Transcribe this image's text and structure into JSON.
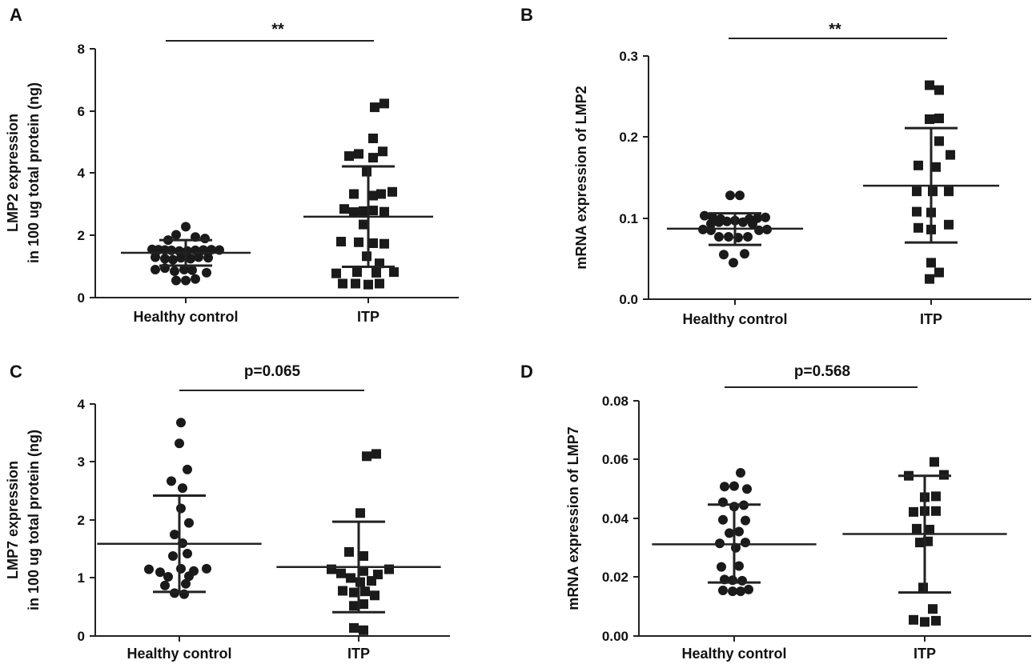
{
  "chart_data": [
    {
      "panel": "A",
      "type": "scatter",
      "ylabel": [
        "LMP2 expression",
        "in 100 ug total protein (ng)"
      ],
      "ylim": [
        0,
        8
      ],
      "yticks": [
        "0",
        "2",
        "4",
        "6",
        "8"
      ],
      "categories": [
        "Healthy control",
        "ITP"
      ],
      "significance": "**",
      "series": [
        {
          "name": "Healthy control",
          "marker": "circle",
          "mean": 1.44,
          "sd_low": 1.03,
          "sd_high": 1.85,
          "points": [
            {
              "x": -0.42,
              "y": 1.55
            },
            {
              "x": -0.34,
              "y": 1.54
            },
            {
              "x": -0.26,
              "y": 1.53
            },
            {
              "x": -0.18,
              "y": 1.52
            },
            {
              "x": -0.08,
              "y": 1.5
            },
            {
              "x": 0.02,
              "y": 1.5
            },
            {
              "x": 0.12,
              "y": 1.52
            },
            {
              "x": 0.22,
              "y": 1.53
            },
            {
              "x": 0.32,
              "y": 1.54
            },
            {
              "x": 0.42,
              "y": 1.53
            },
            {
              "x": -0.22,
              "y": 1.85
            },
            {
              "x": -0.12,
              "y": 2.02
            },
            {
              "x": 0.0,
              "y": 2.28
            },
            {
              "x": 0.12,
              "y": 1.95
            },
            {
              "x": 0.24,
              "y": 1.9
            },
            {
              "x": -0.38,
              "y": 1.3
            },
            {
              "x": -0.26,
              "y": 1.25
            },
            {
              "x": -0.16,
              "y": 1.22
            },
            {
              "x": -0.06,
              "y": 1.28
            },
            {
              "x": 0.06,
              "y": 1.25
            },
            {
              "x": 0.16,
              "y": 1.3
            },
            {
              "x": 0.28,
              "y": 1.28
            },
            {
              "x": -0.38,
              "y": 0.9
            },
            {
              "x": -0.26,
              "y": 0.95
            },
            {
              "x": -0.14,
              "y": 0.85
            },
            {
              "x": -0.02,
              "y": 0.9
            },
            {
              "x": 0.08,
              "y": 0.88
            },
            {
              "x": 0.26,
              "y": 0.8
            },
            {
              "x": -0.12,
              "y": 0.55
            },
            {
              "x": 0.0,
              "y": 0.55
            },
            {
              "x": 0.12,
              "y": 0.6
            }
          ]
        },
        {
          "name": "ITP",
          "marker": "square",
          "mean": 2.6,
          "sd_low": 0.99,
          "sd_high": 4.22,
          "points": [
            {
              "x": 0.08,
              "y": 6.12
            },
            {
              "x": 0.2,
              "y": 6.24
            },
            {
              "x": 0.06,
              "y": 5.12
            },
            {
              "x": -0.24,
              "y": 4.55
            },
            {
              "x": -0.12,
              "y": 4.62
            },
            {
              "x": 0.06,
              "y": 4.5
            },
            {
              "x": 0.18,
              "y": 4.7
            },
            {
              "x": -0.02,
              "y": 4.05
            },
            {
              "x": -0.18,
              "y": 3.33
            },
            {
              "x": 0.06,
              "y": 3.28
            },
            {
              "x": 0.16,
              "y": 3.33
            },
            {
              "x": 0.3,
              "y": 3.4
            },
            {
              "x": -0.3,
              "y": 2.85
            },
            {
              "x": -0.18,
              "y": 2.75
            },
            {
              "x": -0.06,
              "y": 2.78
            },
            {
              "x": 0.06,
              "y": 2.8
            },
            {
              "x": 0.2,
              "y": 2.76
            },
            {
              "x": -0.06,
              "y": 2.35
            },
            {
              "x": -0.34,
              "y": 1.8
            },
            {
              "x": -0.12,
              "y": 1.78
            },
            {
              "x": 0.06,
              "y": 1.75
            },
            {
              "x": 0.2,
              "y": 1.73
            },
            {
              "x": -0.02,
              "y": 1.33
            },
            {
              "x": 0.14,
              "y": 1.1
            },
            {
              "x": -0.4,
              "y": 0.78
            },
            {
              "x": -0.14,
              "y": 0.82
            },
            {
              "x": 0.1,
              "y": 0.8
            },
            {
              "x": 0.32,
              "y": 0.82
            },
            {
              "x": -0.32,
              "y": 0.45
            },
            {
              "x": -0.16,
              "y": 0.45
            },
            {
              "x": 0.0,
              "y": 0.42
            },
            {
              "x": 0.14,
              "y": 0.45
            }
          ]
        }
      ]
    },
    {
      "panel": "B",
      "type": "scatter",
      "ylabel": [
        "mRNA expression of LMP2"
      ],
      "ylim": [
        0,
        0.3
      ],
      "yticks": [
        "0.0",
        "0.1",
        "0.2",
        "0.3"
      ],
      "categories": [
        "Healthy control",
        "ITP"
      ],
      "significance": "**",
      "series": [
        {
          "name": "Healthy control",
          "marker": "circle",
          "mean": 0.087,
          "sd_low": 0.067,
          "sd_high": 0.106,
          "points": [
            {
              "x": -0.06,
              "y": 0.128
            },
            {
              "x": 0.06,
              "y": 0.128
            },
            {
              "x": -0.38,
              "y": 0.103
            },
            {
              "x": -0.28,
              "y": 0.101
            },
            {
              "x": -0.18,
              "y": 0.099
            },
            {
              "x": 0.18,
              "y": 0.099
            },
            {
              "x": 0.28,
              "y": 0.1
            },
            {
              "x": 0.38,
              "y": 0.101
            },
            {
              "x": -0.3,
              "y": 0.093
            },
            {
              "x": -0.2,
              "y": 0.095
            },
            {
              "x": -0.1,
              "y": 0.096
            },
            {
              "x": 0.0,
              "y": 0.097
            },
            {
              "x": 0.1,
              "y": 0.095
            },
            {
              "x": 0.22,
              "y": 0.093
            },
            {
              "x": -0.4,
              "y": 0.086
            },
            {
              "x": -0.3,
              "y": 0.085
            },
            {
              "x": 0.3,
              "y": 0.085
            },
            {
              "x": 0.4,
              "y": 0.086
            },
            {
              "x": -0.2,
              "y": 0.077
            },
            {
              "x": -0.08,
              "y": 0.077
            },
            {
              "x": 0.04,
              "y": 0.076
            },
            {
              "x": 0.16,
              "y": 0.077
            },
            {
              "x": -0.14,
              "y": 0.055
            },
            {
              "x": 0.12,
              "y": 0.056
            },
            {
              "x": -0.02,
              "y": 0.045
            }
          ]
        },
        {
          "name": "ITP",
          "marker": "square",
          "mean": 0.14,
          "sd_low": 0.07,
          "sd_high": 0.211,
          "points": [
            {
              "x": -0.02,
              "y": 0.264
            },
            {
              "x": 0.1,
              "y": 0.258
            },
            {
              "x": -0.02,
              "y": 0.222
            },
            {
              "x": 0.1,
              "y": 0.223
            },
            {
              "x": 0.1,
              "y": 0.195
            },
            {
              "x": -0.16,
              "y": 0.165
            },
            {
              "x": 0.06,
              "y": 0.163
            },
            {
              "x": 0.24,
              "y": 0.178
            },
            {
              "x": -0.18,
              "y": 0.133
            },
            {
              "x": 0.02,
              "y": 0.133
            },
            {
              "x": 0.22,
              "y": 0.133
            },
            {
              "x": -0.18,
              "y": 0.108
            },
            {
              "x": 0.0,
              "y": 0.107
            },
            {
              "x": 0.22,
              "y": 0.092
            },
            {
              "x": -0.16,
              "y": 0.088
            },
            {
              "x": 0.0,
              "y": 0.086
            },
            {
              "x": 0.0,
              "y": 0.045
            },
            {
              "x": -0.02,
              "y": 0.025
            },
            {
              "x": 0.1,
              "y": 0.033
            }
          ]
        }
      ]
    },
    {
      "panel": "C",
      "type": "scatter",
      "ylabel": [
        "LMP7 expression",
        "in 100 ug total protein (ng)"
      ],
      "ylim": [
        0,
        4
      ],
      "yticks": [
        "0",
        "1",
        "2",
        "3",
        "4"
      ],
      "categories": [
        "Healthy control",
        "ITP"
      ],
      "significance": "p=0.065",
      "series": [
        {
          "name": "Healthy control",
          "marker": "circle",
          "mean": 1.59,
          "sd_low": 0.76,
          "sd_high": 2.42,
          "points": [
            {
              "x": 0.02,
              "y": 3.68
            },
            {
              "x": 0.0,
              "y": 3.32
            },
            {
              "x": 0.1,
              "y": 2.87
            },
            {
              "x": -0.1,
              "y": 2.67
            },
            {
              "x": 0.04,
              "y": 2.55
            },
            {
              "x": 0.02,
              "y": 2.2
            },
            {
              "x": 0.12,
              "y": 1.95
            },
            {
              "x": -0.06,
              "y": 1.75
            },
            {
              "x": 0.04,
              "y": 1.6
            },
            {
              "x": 0.1,
              "y": 1.42
            },
            {
              "x": -0.08,
              "y": 1.38
            },
            {
              "x": -0.38,
              "y": 1.15
            },
            {
              "x": -0.24,
              "y": 1.1
            },
            {
              "x": 0.02,
              "y": 1.16
            },
            {
              "x": 0.18,
              "y": 1.12
            },
            {
              "x": 0.34,
              "y": 1.16
            },
            {
              "x": -0.14,
              "y": 1.02
            },
            {
              "x": 0.12,
              "y": 1.03
            },
            {
              "x": -0.18,
              "y": 0.87
            },
            {
              "x": 0.08,
              "y": 0.9
            },
            {
              "x": -0.06,
              "y": 0.74
            },
            {
              "x": 0.06,
              "y": 0.72
            }
          ]
        },
        {
          "name": "ITP",
          "marker": "square",
          "mean": 1.19,
          "sd_low": 0.41,
          "sd_high": 1.97,
          "points": [
            {
              "x": 0.1,
              "y": 3.1
            },
            {
              "x": 0.22,
              "y": 3.14
            },
            {
              "x": 0.02,
              "y": 2.12
            },
            {
              "x": -0.12,
              "y": 1.45
            },
            {
              "x": 0.06,
              "y": 1.38
            },
            {
              "x": -0.34,
              "y": 1.15
            },
            {
              "x": -0.22,
              "y": 1.08
            },
            {
              "x": 0.06,
              "y": 1.12
            },
            {
              "x": 0.24,
              "y": 1.06
            },
            {
              "x": 0.38,
              "y": 1.15
            },
            {
              "x": -0.1,
              "y": 1.0
            },
            {
              "x": 0.02,
              "y": 0.93
            },
            {
              "x": 0.16,
              "y": 0.95
            },
            {
              "x": -0.2,
              "y": 0.78
            },
            {
              "x": -0.06,
              "y": 0.75
            },
            {
              "x": 0.08,
              "y": 0.77
            },
            {
              "x": 0.2,
              "y": 0.7
            },
            {
              "x": -0.06,
              "y": 0.52
            },
            {
              "x": 0.06,
              "y": 0.55
            },
            {
              "x": -0.06,
              "y": 0.14
            },
            {
              "x": 0.06,
              "y": 0.1
            }
          ]
        }
      ]
    },
    {
      "panel": "D",
      "type": "scatter",
      "ylabel": [
        "mRNA expression of LMP7"
      ],
      "ylim": [
        0,
        0.08
      ],
      "yticks": [
        "0.00",
        "0.02",
        "0.04",
        "0.06",
        "0.08"
      ],
      "categories": [
        "Healthy control",
        "ITP"
      ],
      "significance": "p=0.568",
      "series": [
        {
          "name": "Healthy control",
          "marker": "circle",
          "mean": 0.0312,
          "sd_low": 0.0182,
          "sd_high": 0.0447,
          "points": [
            {
              "x": 0.08,
              "y": 0.0555
            },
            {
              "x": -0.12,
              "y": 0.0508
            },
            {
              "x": 0.0,
              "y": 0.051
            },
            {
              "x": 0.16,
              "y": 0.05
            },
            {
              "x": -0.14,
              "y": 0.0455
            },
            {
              "x": 0.0,
              "y": 0.044
            },
            {
              "x": 0.12,
              "y": 0.0445
            },
            {
              "x": -0.14,
              "y": 0.0395
            },
            {
              "x": 0.14,
              "y": 0.0393
            },
            {
              "x": -0.06,
              "y": 0.035
            },
            {
              "x": 0.06,
              "y": 0.0355
            },
            {
              "x": -0.18,
              "y": 0.0315
            },
            {
              "x": 0.02,
              "y": 0.03
            },
            {
              "x": 0.14,
              "y": 0.0318
            },
            {
              "x": -0.16,
              "y": 0.0235
            },
            {
              "x": 0.06,
              "y": 0.0238
            },
            {
              "x": -0.12,
              "y": 0.0192
            },
            {
              "x": -0.02,
              "y": 0.019
            },
            {
              "x": 0.1,
              "y": 0.0188
            },
            {
              "x": -0.14,
              "y": 0.0155
            },
            {
              "x": -0.02,
              "y": 0.0152
            },
            {
              "x": 0.08,
              "y": 0.0152
            },
            {
              "x": 0.18,
              "y": 0.0158
            }
          ]
        },
        {
          "name": "ITP",
          "marker": "square",
          "mean": 0.0347,
          "sd_low": 0.0148,
          "sd_high": 0.0545,
          "points": [
            {
              "x": 0.12,
              "y": 0.0592
            },
            {
              "x": -0.2,
              "y": 0.0545
            },
            {
              "x": 0.24,
              "y": 0.0548
            },
            {
              "x": 0.0,
              "y": 0.0472
            },
            {
              "x": 0.14,
              "y": 0.0475
            },
            {
              "x": -0.14,
              "y": 0.0422
            },
            {
              "x": 0.0,
              "y": 0.0425
            },
            {
              "x": 0.14,
              "y": 0.0425
            },
            {
              "x": -0.1,
              "y": 0.0365
            },
            {
              "x": 0.06,
              "y": 0.0362
            },
            {
              "x": -0.06,
              "y": 0.0318
            },
            {
              "x": 0.04,
              "y": 0.0322
            },
            {
              "x": -0.02,
              "y": 0.0165
            },
            {
              "x": 0.1,
              "y": 0.0092
            },
            {
              "x": -0.14,
              "y": 0.0055
            },
            {
              "x": 0.0,
              "y": 0.0048
            },
            {
              "x": 0.14,
              "y": 0.0052
            }
          ]
        }
      ]
    }
  ]
}
